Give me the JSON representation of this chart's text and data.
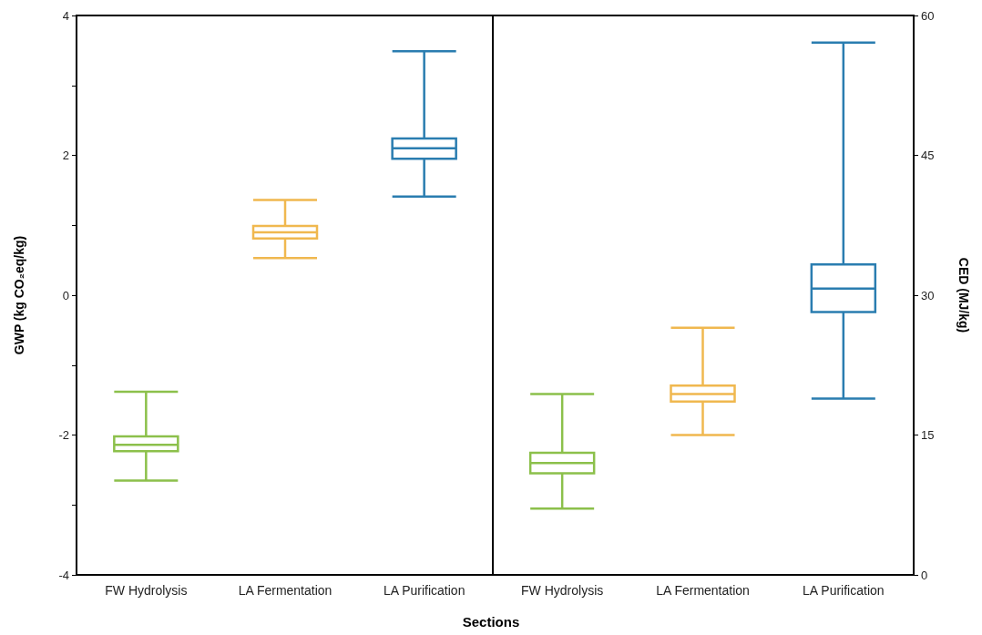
{
  "chart_data": [
    {
      "type": "box",
      "ylabel": "GWP (kg CO₂eq/kg)",
      "xlabel": "Sections",
      "categories": [
        "FW Hydrolysis",
        "LA Fermentation",
        "LA Purification"
      ],
      "colors": [
        "#8cc04b",
        "#f0b84f",
        "#2a7db0"
      ],
      "boxes": [
        {
          "low": -2.65,
          "q1": -2.23,
          "median": -2.14,
          "q3": -2.02,
          "high": -1.38
        },
        {
          "low": 0.53,
          "q1": 0.81,
          "median": 0.9,
          "q3": 0.99,
          "high": 1.36
        },
        {
          "low": 1.41,
          "q1": 1.95,
          "median": 2.1,
          "q3": 2.24,
          "high": 3.49
        }
      ],
      "ylim": [
        -4,
        4
      ],
      "yticks": [
        -4,
        {
          "value": -3,
          "label": null
        },
        -2,
        {
          "value": -1,
          "label": null
        },
        0,
        {
          "value": 1,
          "label": null
        },
        2,
        {
          "value": 3,
          "label": null
        },
        4
      ]
    },
    {
      "type": "box",
      "y2label": "CED (MJ/kg)",
      "categories": [
        "FW Hydrolysis",
        "LA Fermentation",
        "LA Purification"
      ],
      "series": [
        {
          "axis": "y2",
          "colors": [
            "#8cc04b",
            "#f0b84f",
            "#2a7db0"
          ],
          "boxes": [
            {
              "low": 7.1,
              "q1": 10.9,
              "median": 12,
              "q3": 13.1,
              "high": 19.4
            },
            {
              "low": 15,
              "q1": 18.6,
              "median": 19.4,
              "q3": 20.3,
              "high": 26.5
            },
            {
              "low": 18.9,
              "q1": 28.2,
              "median": 30.7,
              "q3": 33.3,
              "high": 57.1
            }
          ]
        }
      ],
      "y2lim": [
        0,
        60
      ],
      "y2ticks": [
        0,
        15,
        30,
        45,
        60
      ]
    }
  ]
}
